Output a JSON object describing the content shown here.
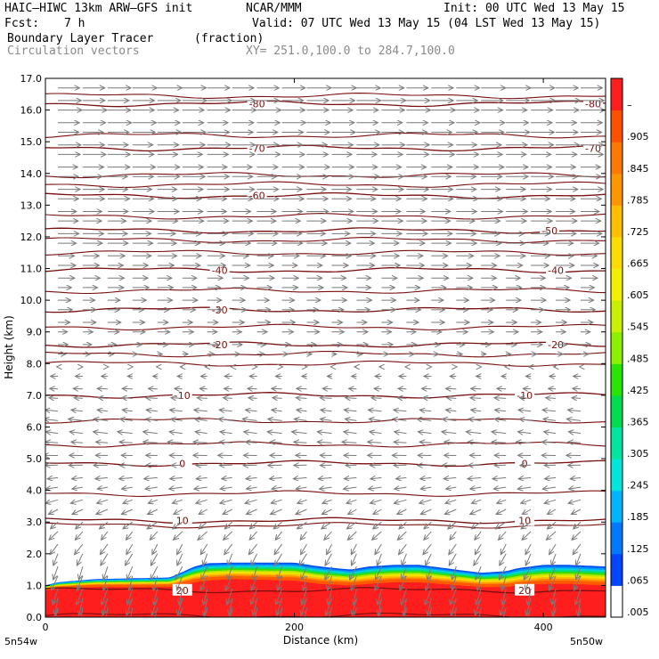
{
  "header": {
    "model": "HAIC–HIWC 13km ARW–GFS init",
    "org": "NCAR/MMM",
    "init": "Init: 00 UTC Wed 13 May 15",
    "fcst_label": "Fcst:",
    "fcst_value": "7 h",
    "valid": "Valid: 07 UTC Wed 13 May 15 (04 LST Wed 13 May 15)",
    "field_name": "Boundary Layer Tracer",
    "field_units": "(fraction)",
    "overlay_name": "Circulation vectors",
    "xy_range": "XY= 251.0,100.0 to 284.7,100.0"
  },
  "chart_data": {
    "type": "heatmap",
    "title": "Boundary Layer Tracer",
    "units": "(fraction)",
    "xlabel": "Distance (km)",
    "ylabel": "Height (km)",
    "xlim": [
      0,
      450
    ],
    "ylim": [
      0,
      17
    ],
    "x_ticks": [
      0,
      200,
      400
    ],
    "y_ticks": [
      "0.0",
      "1.0",
      "2.0",
      "3.0",
      "4.0",
      "5.0",
      "6.0",
      "7.0",
      "8.0",
      "9.0",
      "10.0",
      "11.0",
      "12.0",
      "13.0",
      "14.0",
      "15.0",
      "16.0",
      "17.0"
    ],
    "x_endpoints": {
      "left": "5n54w",
      "right": "5n50w"
    },
    "colorbar": {
      "labels": [
        ".005",
        ".065",
        ".125",
        ".185",
        ".245",
        ".305",
        ".365",
        ".425",
        ".485",
        ".545",
        ".605",
        ".665",
        ".725",
        ".785",
        ".845",
        ".905",
        "–"
      ],
      "colors": [
        "#ffffff",
        "#0046ff",
        "#0078ff",
        "#00b4ff",
        "#00e6dc",
        "#00e6a0",
        "#00dc50",
        "#28e600",
        "#8cf000",
        "#c8f000",
        "#f0f000",
        "#ffdc00",
        "#ffbe00",
        "#ff9600",
        "#ff7800",
        "#ff5000",
        "#ff1e1e"
      ]
    },
    "tracer_layer": {
      "x": [
        0,
        10,
        40,
        100,
        120,
        130,
        150,
        200,
        220,
        245,
        260,
        280,
        300,
        350,
        370,
        380,
        400,
        420,
        450
      ],
      "top_km": [
        1.0,
        1.1,
        1.2,
        1.25,
        1.6,
        1.7,
        1.72,
        1.72,
        1.6,
        1.5,
        1.6,
        1.65,
        1.65,
        1.4,
        1.45,
        1.55,
        1.65,
        1.65,
        1.6
      ],
      "full_red_top_km": [
        0.9,
        0.95,
        1.0,
        1.0,
        1.15,
        1.2,
        1.25,
        1.2,
        1.1,
        1.05,
        1.1,
        1.15,
        1.15,
        1.0,
        1.0,
        1.05,
        1.1,
        1.1,
        1.05
      ]
    },
    "temperature_contours": [
      {
        "label": "20",
        "level_km": 0.85,
        "label_positions": [
          110,
          385
        ]
      },
      {
        "label": "10",
        "level_km": 3.05,
        "label_positions": [
          110,
          385
        ]
      },
      {
        "label": "0",
        "level_km": 4.85,
        "label_positions": [
          110,
          385
        ]
      },
      {
        "label": "-10",
        "level_km": 7.0,
        "label_positions": [
          110,
          385
        ]
      },
      {
        "label": "-20",
        "level_km": 8.6,
        "label_positions": [
          140,
          410
        ]
      },
      {
        "label": "-30",
        "level_km": 9.7,
        "label_positions": [
          140
        ]
      },
      {
        "label": "-40",
        "level_km": 10.95,
        "label_positions": [
          140,
          410
        ]
      },
      {
        "label": "-50",
        "level_km": 12.2,
        "label_positions": [
          405
        ]
      },
      {
        "label": "-60",
        "level_km": 13.3,
        "label_positions": [
          170
        ]
      },
      {
        "label": "-70",
        "level_km": 14.8,
        "label_positions": [
          170,
          440
        ]
      },
      {
        "label": "-80",
        "level_km": 16.2,
        "label_positions": [
          170,
          440
        ]
      }
    ],
    "extra_contour_levels_km": [
      0.05,
      2.9,
      3.9,
      5.45,
      6.2,
      8.0,
      8.3,
      9.15,
      10.3,
      11.5,
      11.9,
      12.65,
      13.65,
      13.95,
      15.2,
      16.45
    ],
    "circulation_vectors": {
      "rows_km": [
        0.3,
        0.6,
        0.9,
        1.3,
        1.6,
        2.0,
        2.3,
        2.7,
        3.0,
        3.4,
        3.7,
        4.1,
        4.4,
        4.8,
        5.1,
        5.5,
        5.8,
        6.2,
        6.5,
        6.9,
        7.2,
        7.6,
        7.9,
        8.3,
        8.6,
        9.0,
        9.3,
        9.7,
        10.0,
        10.4,
        10.7,
        11.1,
        11.4,
        11.8,
        12.1,
        12.5,
        12.8,
        13.2,
        13.5,
        13.9,
        14.2,
        14.6,
        14.9,
        15.3,
        15.6,
        16.0,
        16.3,
        16.7
      ],
      "columns_km": [
        10,
        30,
        50,
        70,
        90,
        110,
        130,
        150,
        170,
        190,
        210,
        230,
        250,
        270,
        290,
        310,
        330,
        350,
        370,
        390,
        410,
        430
      ],
      "profile": [
        {
          "z": 0.0,
          "u": -0.2,
          "w": -1.0
        },
        {
          "z": 2.0,
          "u": -0.3,
          "w": -0.6
        },
        {
          "z": 4.0,
          "u": -0.6,
          "w": -0.1
        },
        {
          "z": 6.0,
          "u": -0.7,
          "w": 0.1
        },
        {
          "z": 7.5,
          "u": -0.4,
          "w": 0.0
        },
        {
          "z": 8.5,
          "u": 0.5,
          "w": 0.0
        },
        {
          "z": 10.0,
          "u": 0.7,
          "w": 0.0
        },
        {
          "z": 12.0,
          "u": 1.0,
          "w": 0.0
        },
        {
          "z": 17.0,
          "u": 1.2,
          "w": 0.0
        }
      ],
      "color": "#7a7a7a"
    },
    "contour_color": "#7a0f0f",
    "grid": false,
    "legend": "right"
  }
}
